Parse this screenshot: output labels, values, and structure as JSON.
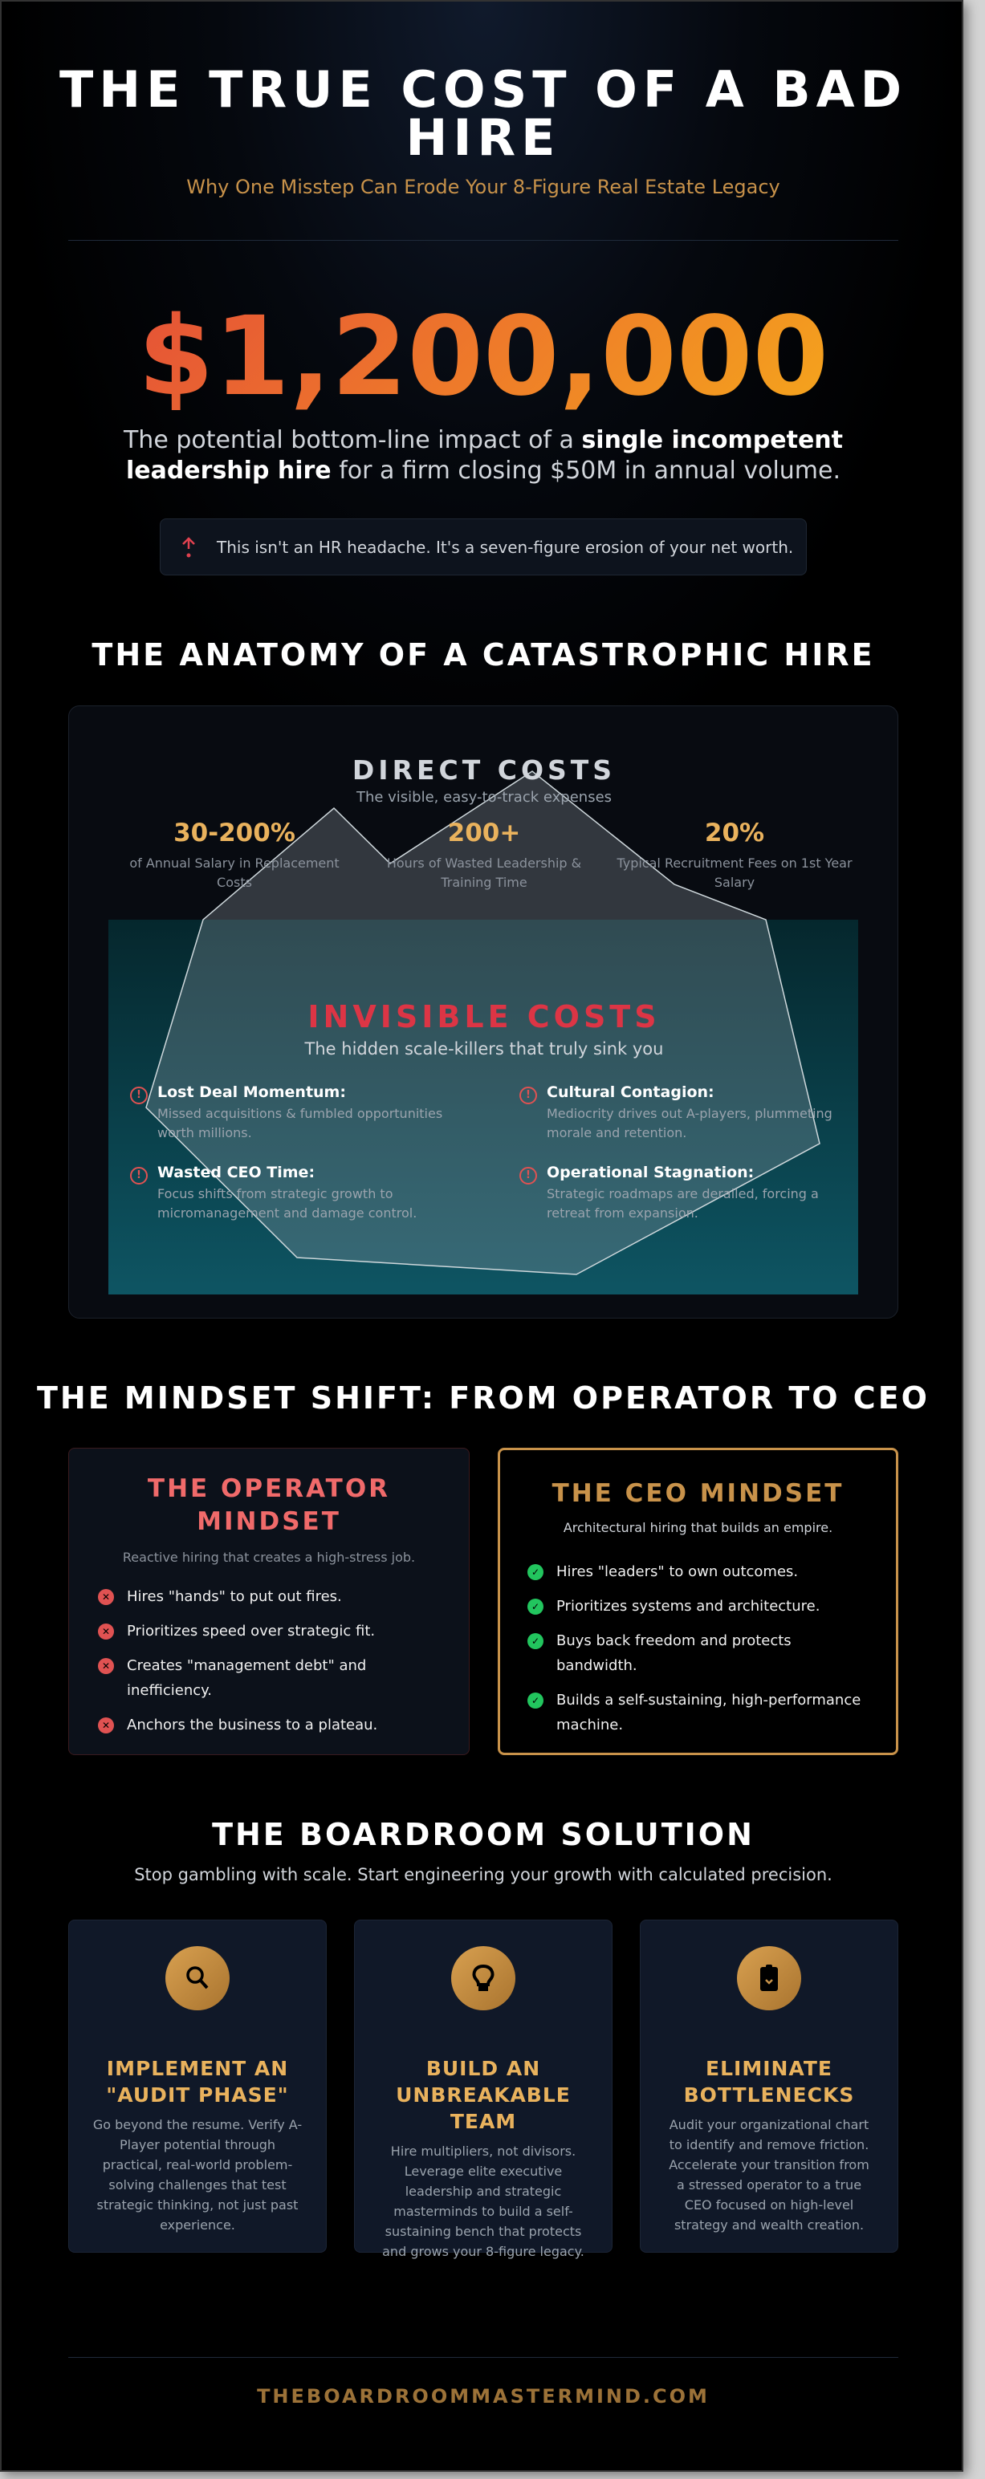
{
  "header": {
    "title": "THE TRUE COST OF A BAD HIRE",
    "subtitle": "Why One Misstep Can Erode Your 8-Figure Real Estate Legacy"
  },
  "hero": {
    "amount": "$1,200,000",
    "lead_pre": "The potential bottom-line impact of a ",
    "lead_bold": "single incompetent leadership hire",
    "lead_post": " for a firm closing $50M in annual volume.",
    "callout_icon": "alert-arrow-icon",
    "callout": "This isn't an HR headache. It's a seven-figure erosion of your net worth."
  },
  "anatomy": {
    "heading": "THE ANATOMY OF A CATASTROPHIC HIRE",
    "direct": {
      "title": "DIRECT COSTS",
      "subtitle": "The visible, easy-to-track expenses",
      "stats": [
        {
          "value": "30-200%",
          "label": "of Annual Salary in Replacement Costs"
        },
        {
          "value": "200+",
          "label": "Hours of Wasted Leadership & Training Time"
        },
        {
          "value": "20%",
          "label": "Typical Recruitment Fees on 1st Year Salary"
        }
      ]
    },
    "invisible": {
      "title": "INVISIBLE COSTS",
      "subtitle": "The hidden scale-killers that truly sink you",
      "items": [
        {
          "title": "Lost Deal Momentum:",
          "desc": "Missed acquisitions & fumbled opportunities worth millions."
        },
        {
          "title": "Cultural Contagion:",
          "desc": "Mediocrity drives out A-players, plummeting morale and retention."
        },
        {
          "title": "Wasted CEO Time:",
          "desc": "Focus shifts from strategic growth to micromanagement and damage control."
        },
        {
          "title": "Operational Stagnation:",
          "desc": "Strategic roadmaps are derailed, forcing a retreat from expansion."
        }
      ]
    }
  },
  "mindset": {
    "heading": "THE MINDSET SHIFT: FROM OPERATOR TO CEO",
    "operator": {
      "title": "THE OPERATOR MINDSET",
      "desc": "Reactive hiring that creates a high-stress job.",
      "items": [
        "Hires \"hands\" to put out fires.",
        "Prioritizes speed over strategic fit.",
        "Creates \"management debt\" and inefficiency.",
        "Anchors the business to a plateau."
      ]
    },
    "ceo": {
      "title": "THE CEO MINDSET",
      "desc": "Architectural hiring that builds an empire.",
      "items": [
        "Hires \"leaders\" to own outcomes.",
        "Prioritizes systems and architecture.",
        "Buys back freedom and protects bandwidth.",
        "Builds a self-sustaining, high-performance machine."
      ]
    }
  },
  "solution": {
    "heading": "THE BOARDROOM SOLUTION",
    "subtitle": "Stop gambling with scale. Start engineering your growth with calculated precision.",
    "cards": [
      {
        "icon": "search-icon",
        "title": "IMPLEMENT AN \"AUDIT PHASE\"",
        "desc": "Go beyond the resume. Verify A-Player potential through practical, real-world problem-solving challenges that test strategic thinking, not just past experience."
      },
      {
        "icon": "lightbulb-icon",
        "title": "BUILD AN UNBREAKABLE TEAM",
        "desc": "Hire multipliers, not divisors. Leverage elite executive leadership and strategic masterminds to build a self-sustaining bench that protects and grows your 8-figure legacy."
      },
      {
        "icon": "clipboard-check-icon",
        "title": "ELIMINATE BOTTLENECKS",
        "desc": "Audit your organizational chart to identify and remove friction. Accelerate your transition from a stressed operator to a true CEO focused on high-level strategy and wealth creation."
      }
    ]
  },
  "footer": {
    "site": "THEBOARDROOMMASTERMIND.COM"
  },
  "colors": {
    "gold": "#c8924a",
    "accent_orange": "#f5a623",
    "accent_red": "#e2443b",
    "danger": "#e05252",
    "success": "#22c55e"
  }
}
